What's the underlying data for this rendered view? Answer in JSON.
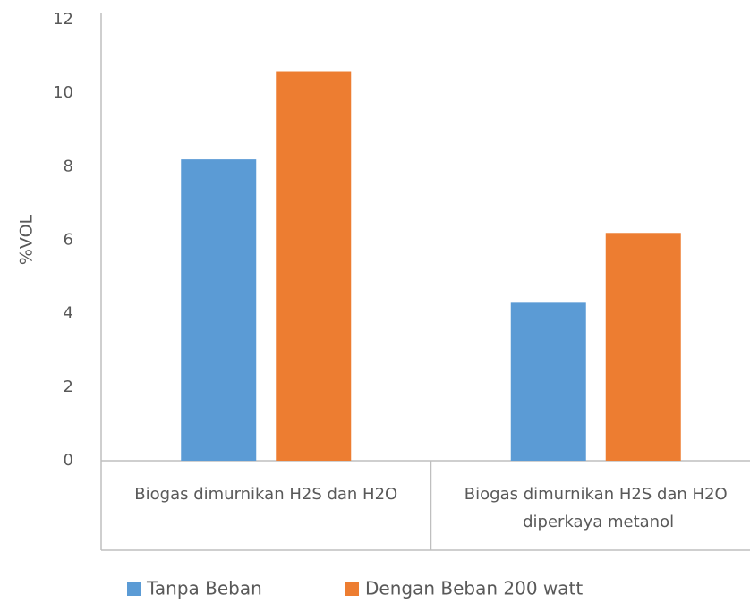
{
  "chart_data": {
    "type": "bar",
    "ylabel": "%VOL",
    "categories": [
      "Biogas dimurnikan H2S dan H2O",
      "Biogas dimurnikan H2S dan H2O diperkaya metanol"
    ],
    "series": [
      {
        "name": "Tanpa Beban",
        "color": "#5b9bd5",
        "values": [
          8.2,
          4.3
        ]
      },
      {
        "name": "Dengan Beban 200 watt",
        "color": "#ed7d31",
        "values": [
          10.6,
          6.2
        ]
      }
    ],
    "ylim": [
      0,
      12
    ],
    "yticks": [
      0,
      2,
      4,
      6,
      8,
      10,
      12
    ],
    "grid": false,
    "legend": "bottom"
  }
}
